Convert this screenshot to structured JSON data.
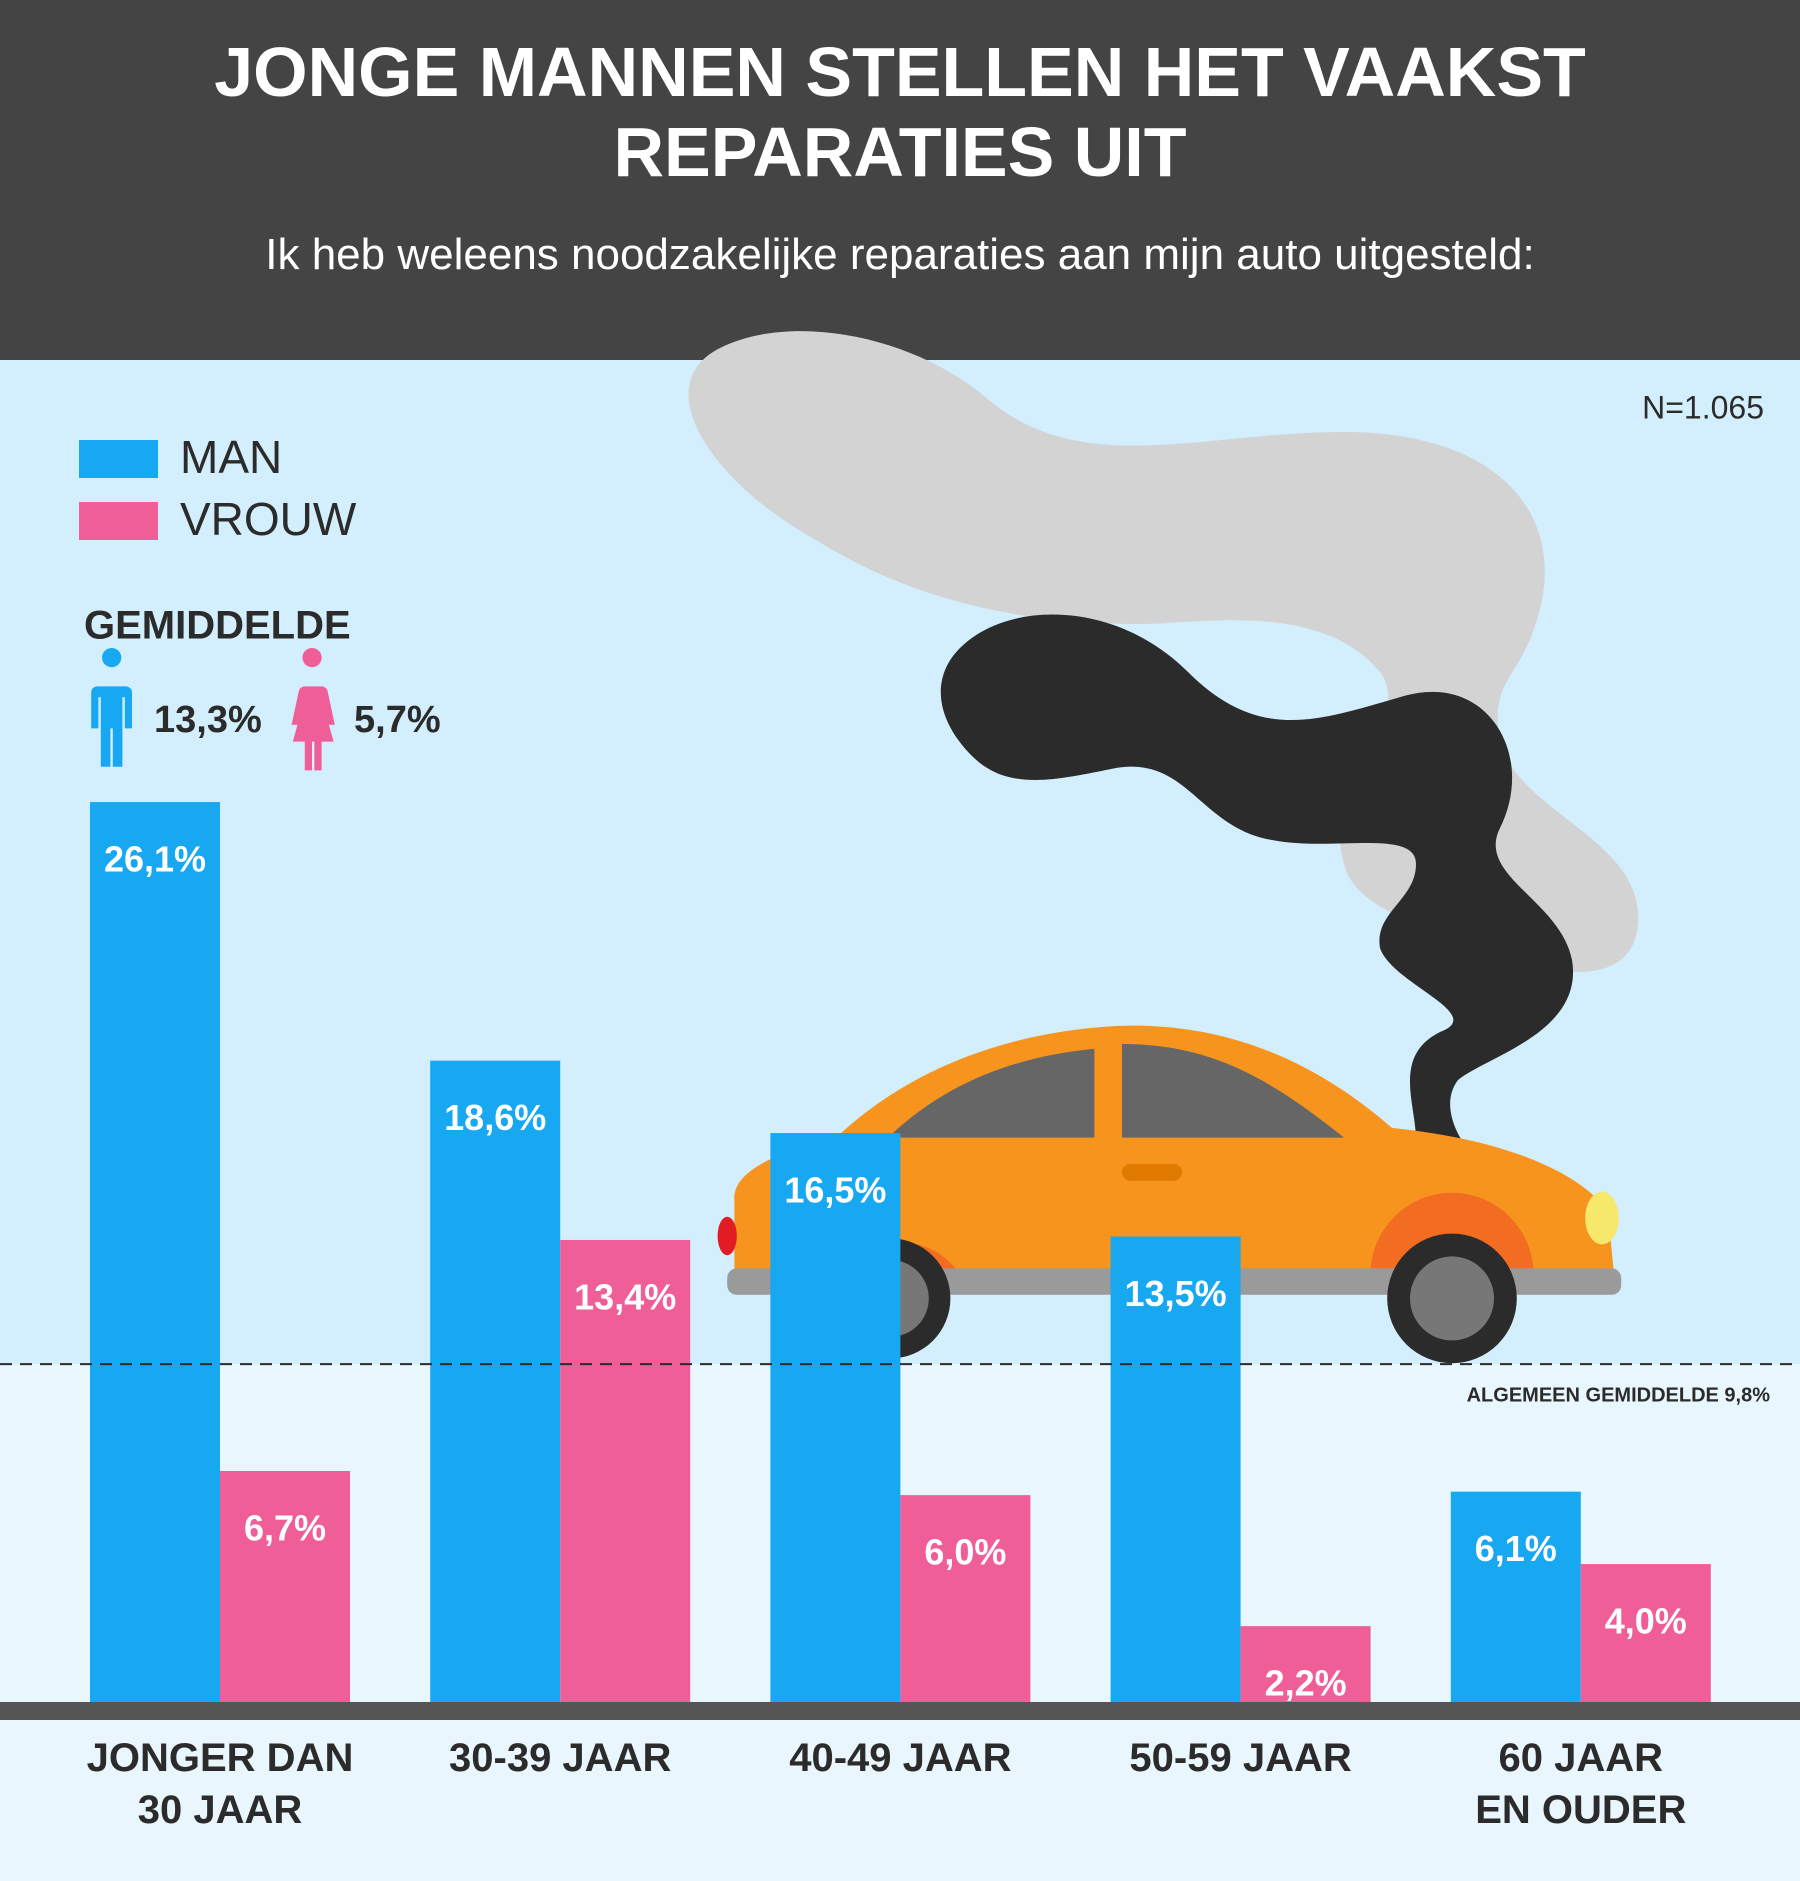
{
  "chart_data": {
    "type": "bar",
    "title": "JONGE MANNEN STELLEN HET VAAKST\nREPARATIES UIT",
    "subtitle": "Ik heb weleens noodzakelijke reparaties aan mijn auto uitgesteld:",
    "sample_size": "N=1.065",
    "legend_title": "GEMIDDELDE",
    "categories": [
      "JONGER DAN\n30 JAAR",
      "30-39 JAAR",
      "40-49 JAAR",
      "50-59 JAAR",
      "60 JAAR\nEN OUDER"
    ],
    "series": [
      {
        "name": "MAN",
        "color": "#17a8f1",
        "values": [
          26.1,
          18.6,
          16.5,
          13.5,
          6.1
        ],
        "value_labels": [
          "26,1%",
          "18,6%",
          "16,5%",
          "13,5%",
          "6,1%"
        ],
        "average_label": "13,3%"
      },
      {
        "name": "VROUW",
        "color": "#f05e98",
        "values": [
          6.7,
          13.4,
          6.0,
          2.2,
          4.0
        ],
        "value_labels": [
          "6,7%",
          "13,4%",
          "6,0%",
          "2,2%",
          "4,0%"
        ],
        "average_label": "5,7%"
      }
    ],
    "average": {
      "value": 9.8,
      "label": "ALGEMEEN GEMIDDELDE 9,8%"
    },
    "ylim": [
      0,
      30
    ]
  }
}
